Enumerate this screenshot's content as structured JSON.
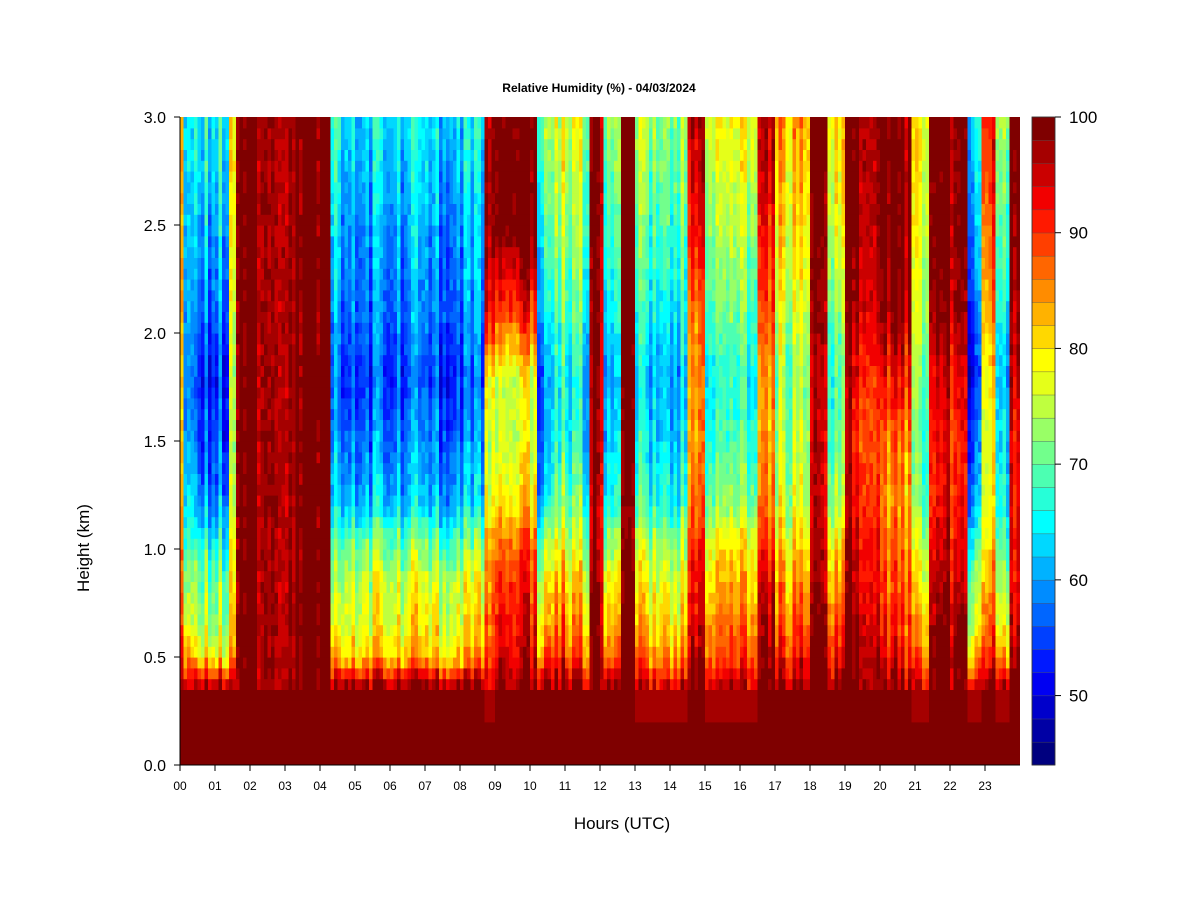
{
  "chart_data": {
    "type": "heatmap",
    "title": "Relative Humidity (%) - 04/03/2024",
    "xlabel": "Hours (UTC)",
    "ylabel": "Height (km)",
    "x_unit": "hours",
    "y_unit": "km",
    "xlim": [
      0,
      24
    ],
    "ylim": [
      0,
      3
    ],
    "x_ticks": [
      "00",
      "01",
      "02",
      "03",
      "04",
      "05",
      "06",
      "07",
      "08",
      "09",
      "10",
      "11",
      "12",
      "13",
      "14",
      "15",
      "16",
      "17",
      "18",
      "19",
      "20",
      "21",
      "22",
      "23"
    ],
    "y_ticks": [
      "0.0",
      "0.5",
      "1.0",
      "1.5",
      "2.0",
      "2.5",
      "3.0"
    ],
    "colorbar": {
      "min": 44,
      "max": 100,
      "step": 2,
      "labels": [
        "100",
        "90",
        "80",
        "70",
        "60",
        "50"
      ],
      "label_values": [
        100,
        90,
        80,
        70,
        60,
        50
      ],
      "colors_low_to_high": [
        "#00007f",
        "#0000a5",
        "#0000cb",
        "#0000f2",
        "#0019ff",
        "#0040ff",
        "#0066ff",
        "#008cff",
        "#00b2ff",
        "#00d8ff",
        "#00ffff",
        "#26ffd8",
        "#4cffb2",
        "#72ff8c",
        "#99ff66",
        "#bfff3f",
        "#e5ff19",
        "#ffff00",
        "#ffd800",
        "#ffb200",
        "#ff8c00",
        "#ff6600",
        "#ff3f00",
        "#ff1900",
        "#f20000",
        "#cb0000",
        "#a50000",
        "#7f0000"
      ]
    },
    "heights_km": [
      0.0,
      0.35,
      0.5,
      0.65,
      0.85,
      1.05,
      1.2,
      1.5,
      1.8,
      2.1,
      2.5,
      3.0
    ],
    "time_profiles": [
      {
        "t": [
          0.0,
          0.15
        ],
        "rh": [
          100,
          100,
          96,
          92,
          90,
          88,
          86,
          84,
          84,
          85,
          86,
          86
        ]
      },
      {
        "t": [
          0.15,
          0.4
        ],
        "rh": [
          100,
          100,
          88,
          80,
          76,
          72,
          68,
          64,
          62,
          64,
          66,
          68
        ]
      },
      {
        "t": [
          0.4,
          1.4
        ],
        "rh": [
          100,
          100,
          80,
          74,
          72,
          66,
          60,
          56,
          54,
          58,
          62,
          66
        ]
      },
      {
        "t": [
          1.4,
          1.65
        ],
        "rh": [
          100,
          100,
          88,
          84,
          82,
          80,
          78,
          76,
          76,
          78,
          80,
          82
        ]
      },
      {
        "t": [
          1.65,
          4.3
        ],
        "rh": [
          100,
          100,
          100,
          100,
          100,
          100,
          100,
          100,
          100,
          100,
          100,
          100
        ]
      },
      {
        "t": [
          4.3,
          4.6
        ],
        "rh": [
          100,
          100,
          86,
          80,
          76,
          72,
          66,
          62,
          60,
          62,
          66,
          70
        ]
      },
      {
        "t": [
          4.6,
          8.7
        ],
        "rh": [
          100,
          100,
          82,
          78,
          76,
          70,
          62,
          58,
          55,
          58,
          60,
          64
        ]
      },
      {
        "t": [
          8.7,
          9.0
        ],
        "rh": [
          100,
          96,
          92,
          90,
          88,
          86,
          80,
          78,
          82,
          96,
          100,
          100
        ]
      },
      {
        "t": [
          9.0,
          10.2
        ],
        "rh": [
          100,
          98,
          94,
          92,
          90,
          86,
          80,
          76,
          76,
          90,
          100,
          100
        ]
      },
      {
        "t": [
          10.2,
          10.6
        ],
        "rh": [
          100,
          100,
          86,
          80,
          76,
          70,
          62,
          58,
          56,
          62,
          66,
          70
        ]
      },
      {
        "t": [
          10.6,
          11.0
        ],
        "rh": [
          100,
          100,
          92,
          88,
          84,
          78,
          72,
          68,
          66,
          70,
          74,
          78
        ]
      },
      {
        "t": [
          11.0,
          11.7
        ],
        "rh": [
          100,
          98,
          88,
          84,
          80,
          74,
          70,
          66,
          64,
          68,
          72,
          76
        ]
      },
      {
        "t": [
          11.7,
          12.1
        ],
        "rh": [
          100,
          100,
          100,
          100,
          98,
          96,
          96,
          98,
          98,
          98,
          100,
          100
        ]
      },
      {
        "t": [
          12.1,
          12.6
        ],
        "rh": [
          100,
          98,
          86,
          82,
          78,
          72,
          66,
          62,
          60,
          64,
          68,
          72
        ]
      },
      {
        "t": [
          12.6,
          13.0
        ],
        "rh": [
          100,
          100,
          100,
          98,
          96,
          94,
          94,
          96,
          96,
          96,
          100,
          100
        ]
      },
      {
        "t": [
          13.0,
          14.5
        ],
        "rh": [
          100,
          96,
          86,
          82,
          78,
          74,
          68,
          64,
          62,
          66,
          70,
          74
        ]
      },
      {
        "t": [
          14.5,
          15.0
        ],
        "rh": [
          100,
          100,
          96,
          94,
          92,
          90,
          86,
          84,
          84,
          86,
          92,
          96
        ]
      },
      {
        "t": [
          15.0,
          16.5
        ],
        "rh": [
          100,
          96,
          88,
          86,
          82,
          78,
          72,
          68,
          66,
          70,
          74,
          78
        ]
      },
      {
        "t": [
          16.5,
          17.0
        ],
        "rh": [
          100,
          100,
          96,
          94,
          92,
          88,
          84,
          82,
          82,
          86,
          90,
          94
        ]
      },
      {
        "t": [
          17.0,
          18.0
        ],
        "rh": [
          100,
          98,
          92,
          88,
          84,
          80,
          76,
          74,
          72,
          76,
          80,
          84
        ]
      },
      {
        "t": [
          18.0,
          18.5
        ],
        "rh": [
          100,
          100,
          100,
          98,
          96,
          94,
          94,
          94,
          94,
          96,
          98,
          100
        ]
      },
      {
        "t": [
          18.5,
          19.0
        ],
        "rh": [
          100,
          98,
          92,
          88,
          84,
          78,
          74,
          70,
          68,
          72,
          76,
          80
        ]
      },
      {
        "t": [
          19.0,
          20.0
        ],
        "rh": [
          100,
          100,
          100,
          98,
          96,
          96,
          94,
          92,
          94,
          98,
          100,
          100
        ]
      },
      {
        "t": [
          20.0,
          20.9
        ],
        "rh": [
          100,
          98,
          92,
          90,
          88,
          86,
          84,
          86,
          92,
          98,
          100,
          100
        ]
      },
      {
        "t": [
          20.9,
          21.4
        ],
        "rh": [
          100,
          96,
          88,
          84,
          80,
          76,
          72,
          70,
          72,
          76,
          78,
          80
        ]
      },
      {
        "t": [
          21.4,
          22.5
        ],
        "rh": [
          100,
          100,
          100,
          98,
          96,
          94,
          92,
          92,
          94,
          98,
          100,
          100
        ]
      },
      {
        "t": [
          22.5,
          22.9
        ],
        "rh": [
          100,
          96,
          82,
          76,
          72,
          66,
          60,
          56,
          52,
          56,
          60,
          64
        ]
      },
      {
        "t": [
          22.9,
          23.3
        ],
        "rh": [
          100,
          100,
          92,
          88,
          84,
          80,
          78,
          78,
          80,
          84,
          88,
          92
        ]
      },
      {
        "t": [
          23.3,
          23.7
        ],
        "rh": [
          100,
          96,
          82,
          76,
          72,
          68,
          64,
          62,
          60,
          64,
          68,
          72
        ]
      },
      {
        "t": [
          23.7,
          24.0
        ],
        "rh": [
          100,
          100,
          96,
          94,
          92,
          92,
          90,
          92,
          94,
          96,
          98,
          100
        ]
      }
    ]
  }
}
